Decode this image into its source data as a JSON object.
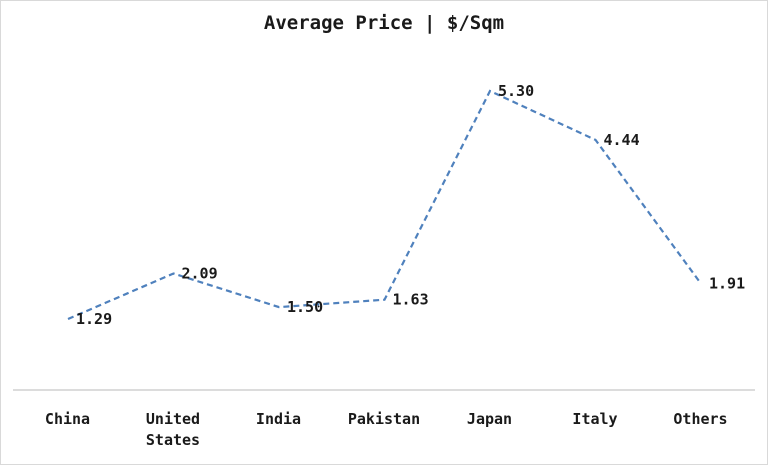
{
  "chart_data": {
    "type": "line",
    "title": "Average Price | $/Sqm",
    "categories": [
      [
        "China"
      ],
      [
        "United",
        "States"
      ],
      [
        "India"
      ],
      [
        "Pakistan"
      ],
      [
        "Japan"
      ],
      [
        "Italy"
      ],
      [
        "Others"
      ]
    ],
    "series": [
      {
        "values": [
          1.29,
          2.09,
          1.5,
          1.63,
          5.3,
          4.44,
          1.91
        ],
        "labels": [
          "1.29",
          "2.09",
          "1.50",
          "1.63",
          "5.30",
          "4.44",
          "1.91"
        ]
      }
    ],
    "xlabel": "",
    "ylabel": "",
    "grid": false,
    "legend": "none",
    "line_style": "dashed",
    "colors": {
      "line": "#4f81bd",
      "text": "#1a1a1a",
      "axis": "#c8c8c8",
      "border": "#d9d9d9"
    }
  }
}
